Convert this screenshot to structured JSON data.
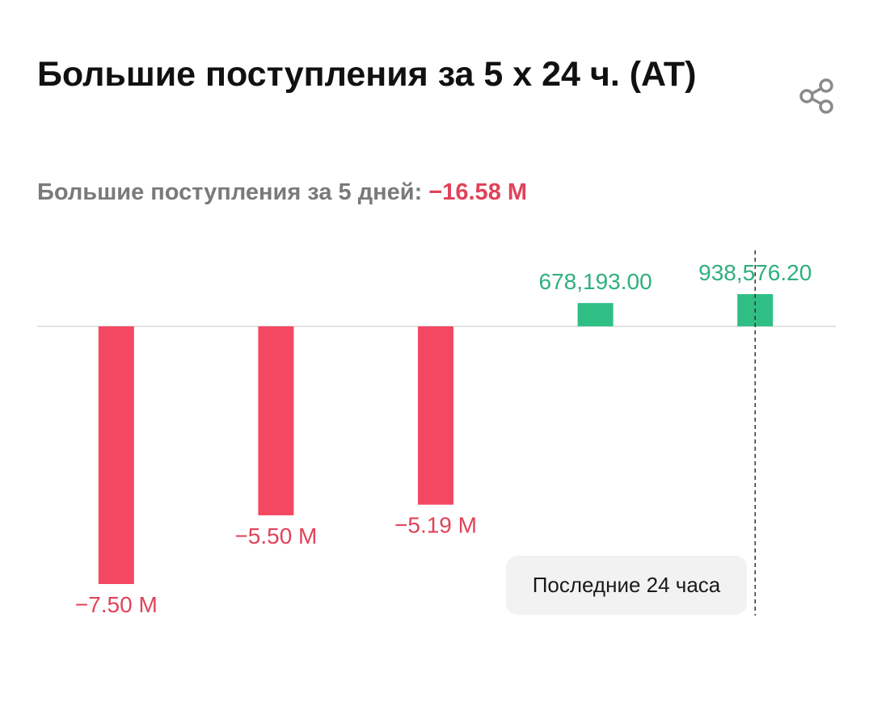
{
  "header": {
    "title": "Большие поступления за 5 x 24 ч. (AT)",
    "share_icon": "share-icon"
  },
  "summary": {
    "label": "Большие поступления за 5 дней:",
    "value": "−16.58 M"
  },
  "tooltip": {
    "label": "Последние 24 часа"
  },
  "colors": {
    "negative": "#f44862",
    "positive": "#2fbf85",
    "negative_text": "#e0435a",
    "positive_text": "#2fb07d"
  },
  "chart_data": {
    "type": "bar",
    "categories": [
      "",
      "",
      "",
      "",
      ""
    ],
    "values": [
      -7500000,
      -5500000,
      -5190000,
      678193.0,
      938576.2
    ],
    "labels": [
      "−7.50 M",
      "−5.50 M",
      "−5.19 M",
      "678,193.00",
      "938,576.20"
    ],
    "ylim": [
      -8000000,
      1500000
    ],
    "grid": false,
    "highlight_index": 4
  }
}
